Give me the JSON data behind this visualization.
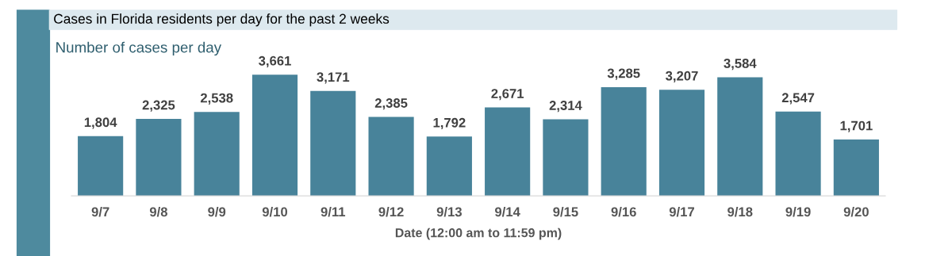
{
  "chart_data": {
    "type": "bar",
    "title": "Cases in Florida residents per day for the past 2 weeks",
    "subtitle": "Number of cases per day",
    "xlabel": "Date (12:00 am to 11:59 pm)",
    "categories": [
      "9/7",
      "9/8",
      "9/9",
      "9/10",
      "9/11",
      "9/12",
      "9/13",
      "9/14",
      "9/15",
      "9/16",
      "9/17",
      "9/18",
      "9/19",
      "9/20"
    ],
    "values": [
      1804,
      2325,
      2538,
      3661,
      3171,
      2385,
      1792,
      2671,
      2314,
      3285,
      3207,
      3584,
      2547,
      1701
    ],
    "value_labels": [
      "1,804",
      "2,325",
      "2,538",
      "3,661",
      "3,171",
      "2,385",
      "1,792",
      "2,671",
      "2,314",
      "3,285",
      "3,207",
      "3,584",
      "2,547",
      "1,701"
    ],
    "color": "#48839a",
    "grid": false,
    "legend": false
  }
}
